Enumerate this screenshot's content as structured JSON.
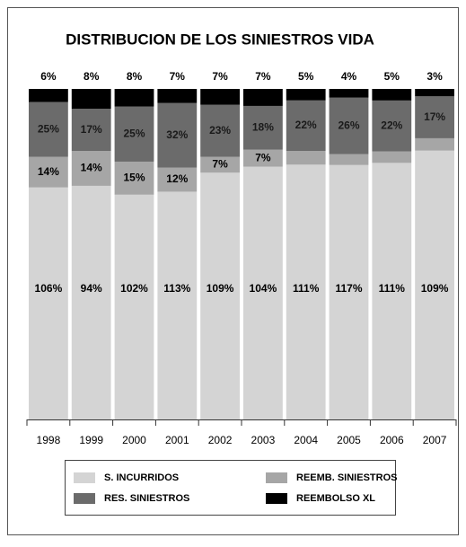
{
  "chart_data": {
    "type": "stacked-share-bar",
    "title": "DISTRIBUCION DE LOS SINIESTROS VIDA",
    "categories": [
      "1998",
      "1999",
      "2000",
      "2001",
      "2002",
      "2003",
      "2004",
      "2005",
      "2006",
      "2007"
    ],
    "series": [
      {
        "name": "S. INCURRIDOS",
        "color": "#d4d4d4",
        "values": [
          106,
          94,
          102,
          113,
          109,
          104,
          111,
          117,
          111,
          109
        ],
        "value_labels": [
          "106%",
          "94%",
          "102%",
          "113%",
          "109%",
          "104%",
          "111%",
          "117%",
          "111%",
          "109%"
        ]
      },
      {
        "name": "REEMB. SINIESTROS",
        "color": "#a6a6a6",
        "values": [
          14,
          14,
          15,
          12,
          7,
          7,
          6,
          5,
          5,
          5
        ],
        "value_labels": [
          "14%",
          "14%",
          "15%",
          "12%",
          "7%",
          "7%",
          "6%",
          "5%",
          "5%",
          "5%"
        ]
      },
      {
        "name": "RES. SINIESTROS",
        "color": "#6b6b6b",
        "values": [
          25,
          17,
          25,
          32,
          23,
          18,
          22,
          26,
          22,
          17
        ],
        "value_labels": [
          "25%",
          "17%",
          "25%",
          "32%",
          "23%",
          "18%",
          "22%",
          "26%",
          "22%",
          "17%"
        ]
      },
      {
        "name": "REEMBOLSO XL",
        "color": "#000000",
        "values": [
          6,
          8,
          8,
          7,
          7,
          7,
          5,
          4,
          5,
          3
        ],
        "value_labels": [
          "6%",
          "8%",
          "8%",
          "7%",
          "7%",
          "7%",
          "5%",
          "4%",
          "5%",
          "3%"
        ]
      }
    ]
  }
}
